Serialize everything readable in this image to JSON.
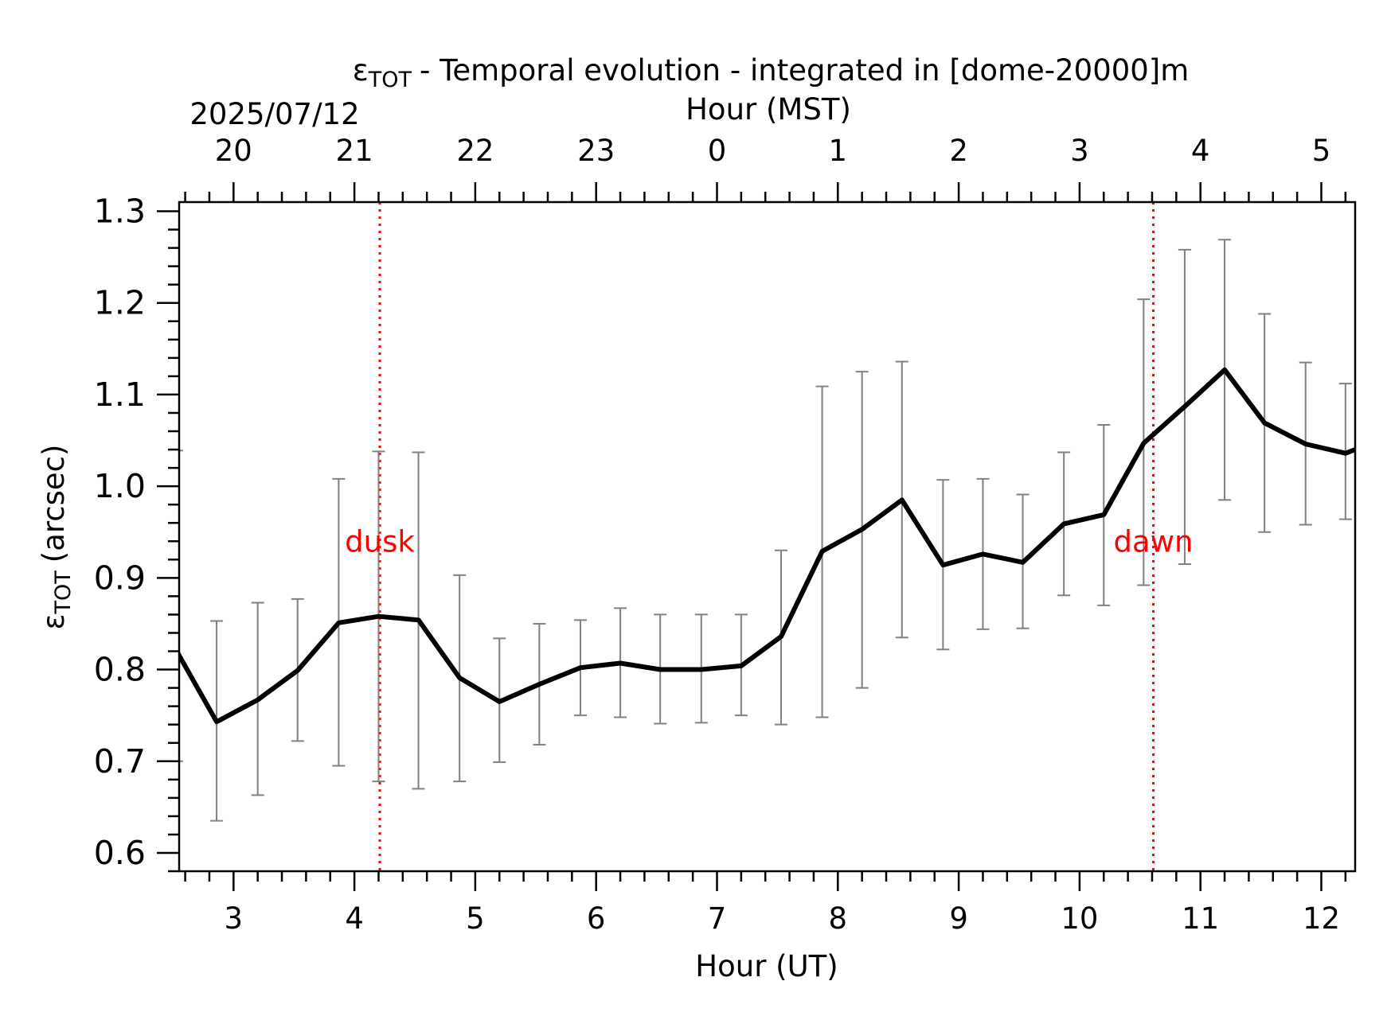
{
  "chart_data": {
    "type": "line",
    "title": "- Temporal evolution - integrated in [dome-20000]m",
    "title_symbol": "ε",
    "title_symbol_subscript": "TOT",
    "xlabel": "Hour (UT)",
    "x2label": "Hour (MST)",
    "date_label": "2025/07/12",
    "ylabel_symbol": "ε",
    "ylabel_subscript": "TOT",
    "ylabel_unit": "(arcsec)",
    "xlim": [
      2.55,
      12.28
    ],
    "ylim": [
      0.58,
      1.31
    ],
    "xticks": [
      3,
      4,
      5,
      6,
      7,
      8,
      9,
      10,
      11,
      12
    ],
    "yticks": [
      0.6,
      0.7,
      0.8,
      0.9,
      1.0,
      1.1,
      1.2,
      1.3
    ],
    "ytick_labels": [
      "0.6",
      "0.7",
      "0.8",
      "0.9",
      "1.0",
      "1.1",
      "1.2",
      "1.3"
    ],
    "x2_ticks": [
      {
        "x": 3,
        "label": "20"
      },
      {
        "x": 4,
        "label": "21"
      },
      {
        "x": 5,
        "label": "22"
      },
      {
        "x": 6,
        "label": "23"
      },
      {
        "x": 7,
        "label": "0"
      },
      {
        "x": 8,
        "label": "1"
      },
      {
        "x": 9,
        "label": "2"
      },
      {
        "x": 10,
        "label": "3"
      },
      {
        "x": 11,
        "label": "4"
      },
      {
        "x": 12,
        "label": "5"
      }
    ],
    "grid": false,
    "vlines": [
      {
        "x": 4.21,
        "label": "dusk",
        "color": "#ff0000"
      },
      {
        "x": 10.61,
        "label": "dawn",
        "color": "#ff0000"
      }
    ],
    "series": [
      {
        "color": "#000000",
        "errorbar_color": "#808080",
        "x": [
          2.53,
          2.86,
          3.2,
          3.53,
          3.87,
          4.2,
          4.53,
          4.87,
          5.2,
          5.53,
          5.87,
          6.2,
          6.53,
          6.87,
          7.2,
          7.53,
          7.87,
          8.2,
          8.53,
          8.87,
          9.2,
          9.53,
          9.87,
          10.2,
          10.53,
          10.87,
          11.2,
          11.53,
          11.87,
          12.2,
          12.3
        ],
        "y": [
          0.82,
          0.743,
          0.767,
          0.799,
          0.851,
          0.858,
          0.854,
          0.791,
          0.765,
          0.784,
          0.802,
          0.807,
          0.8,
          0.8,
          0.804,
          0.836,
          0.929,
          0.953,
          0.985,
          0.914,
          0.926,
          0.917,
          0.959,
          0.969,
          1.047,
          1.087,
          1.127,
          1.069,
          1.046,
          1.036,
          1.041
        ],
        "yerr_low": [
          0.7,
          0.635,
          0.663,
          0.722,
          0.695,
          0.678,
          0.67,
          0.678,
          0.699,
          0.718,
          0.75,
          0.748,
          0.741,
          0.742,
          0.75,
          0.74,
          0.748,
          0.78,
          0.835,
          0.822,
          0.844,
          0.845,
          0.881,
          0.87,
          0.892,
          0.915,
          0.985,
          0.95,
          0.958,
          0.964,
          null
        ],
        "yerr_high": [
          1.039,
          0.853,
          0.873,
          0.877,
          1.008,
          1.038,
          1.037,
          0.903,
          0.834,
          0.85,
          0.854,
          0.867,
          0.86,
          0.86,
          0.86,
          0.93,
          1.109,
          1.125,
          1.136,
          1.007,
          1.008,
          0.991,
          1.037,
          1.067,
          1.204,
          1.258,
          1.269,
          1.188,
          1.135,
          1.112,
          null
        ]
      }
    ]
  }
}
